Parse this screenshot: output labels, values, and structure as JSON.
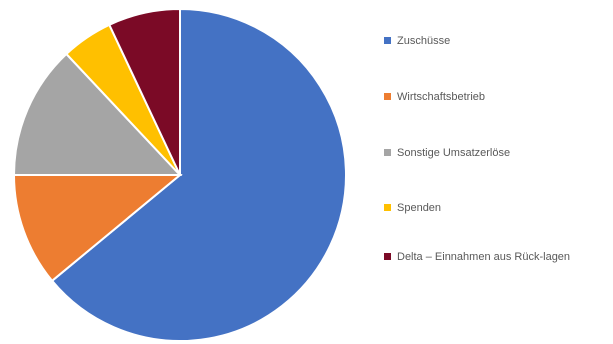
{
  "chart_data": {
    "type": "pie",
    "title": "",
    "categories": [
      "Zuschüsse",
      "Wirtschaftsbetrieb",
      "Sonstige Umsatzerlöse",
      "Spenden",
      "Delta – Einnahmen aus Rück-lagen"
    ],
    "values": [
      64,
      11,
      13,
      5,
      7
    ],
    "colors": [
      "#4472C4",
      "#ED7D31",
      "#A5A5A5",
      "#FFC000",
      "#7B0A26"
    ],
    "legend_position": "right"
  },
  "legend": {
    "items": [
      {
        "label": "Zuschüsse",
        "color": "#4472C4"
      },
      {
        "label": "Wirtschaftsbetrieb",
        "color": "#ED7D31"
      },
      {
        "label": "Sonstige Umsatzerlöse",
        "color": "#A5A5A5"
      },
      {
        "label": "Spenden",
        "color": "#FFC000"
      },
      {
        "label": "Delta – Einnahmen aus Rück-lagen",
        "color": "#7B0A26"
      }
    ]
  }
}
